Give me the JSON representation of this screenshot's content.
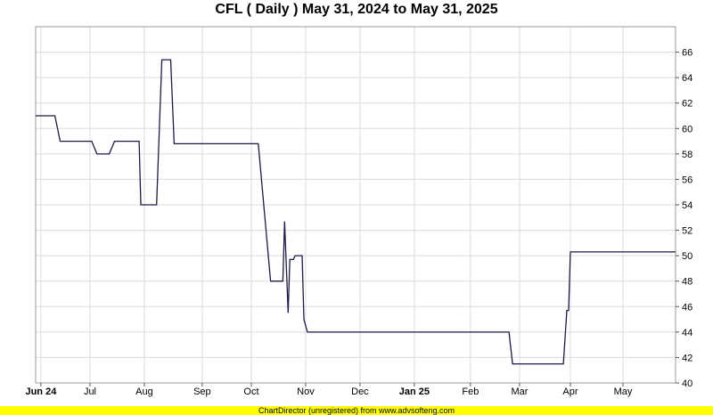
{
  "chart_data": {
    "type": "line",
    "title": "CFL ( Daily ) May 31, 2024 to May 31, 2025",
    "ylim": [
      40,
      68
    ],
    "yticks": [
      40,
      42,
      44,
      46,
      48,
      50,
      52,
      54,
      56,
      58,
      60,
      62,
      64,
      66
    ],
    "xlim": [
      "2024-05-31",
      "2025-05-31"
    ],
    "xticks": [
      {
        "label": "Jun 24",
        "date": "2024-06-03",
        "bold": true
      },
      {
        "label": "Jul",
        "date": "2024-07-01",
        "bold": false
      },
      {
        "label": "Aug",
        "date": "2024-08-01",
        "bold": false
      },
      {
        "label": "Sep",
        "date": "2024-09-03",
        "bold": false
      },
      {
        "label": "Oct",
        "date": "2024-10-01",
        "bold": false
      },
      {
        "label": "Nov",
        "date": "2024-11-01",
        "bold": false
      },
      {
        "label": "Dec",
        "date": "2024-12-02",
        "bold": false
      },
      {
        "label": "Jan 25",
        "date": "2025-01-02",
        "bold": true
      },
      {
        "label": "Feb",
        "date": "2025-02-03",
        "bold": false
      },
      {
        "label": "Mar",
        "date": "2025-03-03",
        "bold": false
      },
      {
        "label": "Apr",
        "date": "2025-04-01",
        "bold": false
      },
      {
        "label": "May",
        "date": "2025-05-01",
        "bold": false
      }
    ],
    "grid": true,
    "series": [
      {
        "color": "#1a1a4e",
        "points": [
          [
            "2024-05-31",
            61.0
          ],
          [
            "2024-06-11",
            61.0
          ],
          [
            "2024-06-14",
            59.0
          ],
          [
            "2024-07-02",
            59.0
          ],
          [
            "2024-07-05",
            58.0
          ],
          [
            "2024-07-12",
            58.0
          ],
          [
            "2024-07-15",
            59.0
          ],
          [
            "2024-07-29",
            59.0
          ],
          [
            "2024-07-30",
            54.0
          ],
          [
            "2024-08-08",
            54.0
          ],
          [
            "2024-08-11",
            65.4
          ],
          [
            "2024-08-16",
            65.4
          ],
          [
            "2024-08-18",
            58.8
          ],
          [
            "2024-10-05",
            58.8
          ],
          [
            "2024-10-12",
            48.0
          ],
          [
            "2024-10-19",
            48.0
          ],
          [
            "2024-10-20",
            52.7
          ],
          [
            "2024-10-22",
            45.5
          ],
          [
            "2024-10-23",
            49.7
          ],
          [
            "2024-10-25",
            49.7
          ],
          [
            "2024-10-26",
            50.0
          ],
          [
            "2024-10-30",
            50.0
          ],
          [
            "2024-10-31",
            45.0
          ],
          [
            "2024-11-02",
            44.0
          ],
          [
            "2025-01-15",
            44.0
          ],
          [
            "2025-02-25",
            44.0
          ],
          [
            "2025-02-27",
            41.5
          ],
          [
            "2025-03-28",
            41.5
          ],
          [
            "2025-03-30",
            45.7
          ],
          [
            "2025-03-31",
            45.7
          ],
          [
            "2025-04-01",
            50.3
          ],
          [
            "2025-05-31",
            50.3
          ]
        ]
      }
    ]
  },
  "footer_text": "ChartDirector (unregistered) from www.advsofteng.com"
}
